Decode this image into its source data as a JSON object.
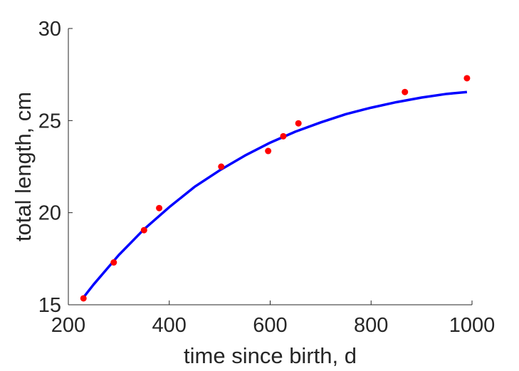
{
  "chart_data": {
    "type": "scatter",
    "title": "",
    "xlabel": "time since birth, d",
    "ylabel": "total length, cm",
    "xlim": [
      200,
      1000
    ],
    "ylim": [
      15,
      30
    ],
    "xticks": [
      200,
      400,
      600,
      800,
      1000
    ],
    "yticks": [
      15,
      20,
      25,
      30
    ],
    "grid": false,
    "legend": "none",
    "series": [
      {
        "kind": "points",
        "color": "#ff0000",
        "x": [
          230,
          290,
          350,
          380,
          503,
          596,
          626,
          656,
          867,
          990
        ],
        "y": [
          15.35,
          17.3,
          19.05,
          20.25,
          22.5,
          23.35,
          24.15,
          24.85,
          26.55,
          27.3
        ]
      },
      {
        "kind": "fitted-curve",
        "color": "#0000ff",
        "x": [
          230,
          250,
          300,
          350,
          400,
          450,
          500,
          550,
          600,
          650,
          700,
          750,
          800,
          850,
          900,
          950,
          990
        ],
        "y": [
          15.4,
          16.1,
          17.7,
          19.1,
          20.3,
          21.4,
          22.3,
          23.1,
          23.8,
          24.4,
          24.9,
          25.35,
          25.7,
          26.0,
          26.25,
          26.45,
          26.55
        ]
      }
    ]
  }
}
